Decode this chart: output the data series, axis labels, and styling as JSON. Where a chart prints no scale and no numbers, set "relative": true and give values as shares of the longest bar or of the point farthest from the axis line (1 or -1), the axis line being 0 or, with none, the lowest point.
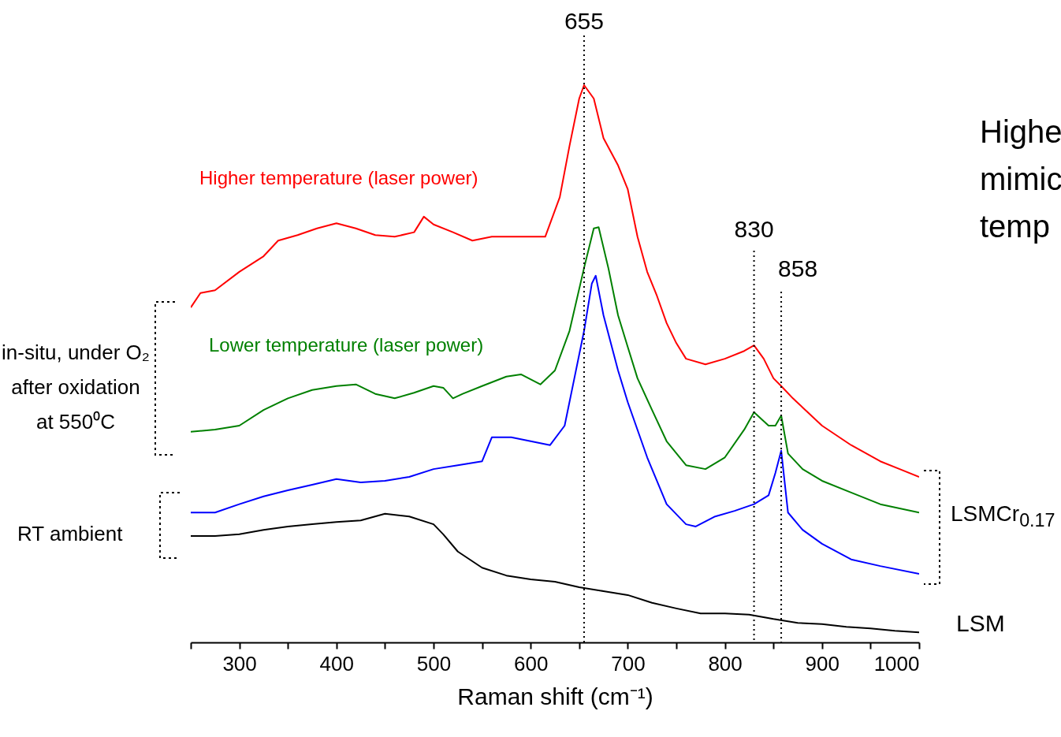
{
  "chart_data": {
    "type": "line",
    "xlabel": "Raman shift (cm⁻¹)",
    "relative": true,
    "xlim": [
      250,
      1000
    ],
    "xticks": [
      {
        "value": 250,
        "label": null
      },
      300,
      {
        "value": 350,
        "label": null
      },
      400,
      {
        "value": 450,
        "label": null
      },
      500,
      {
        "value": 550,
        "label": null
      },
      600,
      {
        "value": 650,
        "label": null
      },
      700,
      {
        "value": 750,
        "label": null
      },
      800,
      {
        "value": 850,
        "label": null
      },
      900,
      {
        "value": 950,
        "label": null
      },
      1000
    ],
    "series": [
      {
        "name": "Higher temperature (laser power)",
        "color": "#ff0000",
        "x": [
          250,
          260,
          275,
          300,
          325,
          340,
          360,
          380,
          400,
          420,
          440,
          460,
          480,
          490,
          500,
          520,
          540,
          560,
          580,
          600,
          615,
          630,
          640,
          650,
          655,
          665,
          675,
          690,
          700,
          710,
          720,
          730,
          740,
          750,
          760,
          780,
          800,
          820,
          830,
          840,
          850,
          858,
          870,
          900,
          930,
          960,
          980,
          1000
        ],
        "values": [
          0.601,
          0.627,
          0.632,
          0.665,
          0.693,
          0.721,
          0.731,
          0.743,
          0.752,
          0.743,
          0.731,
          0.728,
          0.736,
          0.764,
          0.75,
          0.736,
          0.721,
          0.728,
          0.728,
          0.728,
          0.728,
          0.799,
          0.891,
          0.976,
          1.0,
          0.976,
          0.905,
          0.856,
          0.813,
          0.728,
          0.665,
          0.622,
          0.573,
          0.537,
          0.509,
          0.499,
          0.509,
          0.523,
          0.533,
          0.509,
          0.474,
          0.46,
          0.438,
          0.389,
          0.354,
          0.325,
          0.311,
          0.297
        ]
      },
      {
        "name": "Lower temperature (laser power)",
        "color": "#008000",
        "x": [
          250,
          275,
          300,
          325,
          350,
          375,
          400,
          420,
          440,
          460,
          480,
          500,
          510,
          520,
          530,
          550,
          575,
          590,
          610,
          625,
          640,
          655,
          665,
          670,
          680,
          690,
          700,
          710,
          725,
          740,
          760,
          780,
          800,
          820,
          830,
          845,
          852,
          858,
          865,
          880,
          900,
          930,
          960,
          1000
        ],
        "values": [
          0.378,
          0.382,
          0.389,
          0.417,
          0.438,
          0.453,
          0.46,
          0.463,
          0.446,
          0.438,
          0.448,
          0.46,
          0.457,
          0.438,
          0.446,
          0.46,
          0.477,
          0.481,
          0.463,
          0.488,
          0.559,
          0.672,
          0.743,
          0.745,
          0.672,
          0.587,
          0.53,
          0.474,
          0.417,
          0.361,
          0.318,
          0.311,
          0.332,
          0.382,
          0.413,
          0.389,
          0.389,
          0.407,
          0.339,
          0.311,
          0.29,
          0.269,
          0.248,
          0.233
        ]
      },
      {
        "color": "#0000ff",
        "x": [
          250,
          275,
          300,
          325,
          350,
          375,
          400,
          425,
          450,
          475,
          500,
          525,
          550,
          560,
          580,
          600,
          620,
          635,
          645,
          655,
          663,
          667,
          675,
          690,
          700,
          720,
          740,
          760,
          770,
          790,
          810,
          830,
          845,
          852,
          858,
          865,
          880,
          900,
          930,
          960,
          1000
        ],
        "values": [
          0.233,
          0.233,
          0.248,
          0.262,
          0.273,
          0.283,
          0.293,
          0.287,
          0.29,
          0.297,
          0.311,
          0.318,
          0.325,
          0.368,
          0.368,
          0.361,
          0.354,
          0.389,
          0.474,
          0.559,
          0.644,
          0.658,
          0.587,
          0.488,
          0.431,
          0.332,
          0.248,
          0.212,
          0.208,
          0.226,
          0.236,
          0.248,
          0.264,
          0.304,
          0.344,
          0.233,
          0.202,
          0.177,
          0.149,
          0.137,
          0.123
        ]
      },
      {
        "name": "LSM",
        "color": "#000000",
        "x": [
          250,
          275,
          300,
          325,
          350,
          375,
          400,
          425,
          450,
          475,
          500,
          510,
          525,
          550,
          575,
          600,
          625,
          650,
          675,
          700,
          725,
          750,
          775,
          800,
          825,
          850,
          875,
          900,
          925,
          950,
          975,
          1000
        ],
        "values": [
          0.191,
          0.191,
          0.194,
          0.202,
          0.208,
          0.212,
          0.216,
          0.219,
          0.231,
          0.226,
          0.212,
          0.194,
          0.163,
          0.134,
          0.12,
          0.113,
          0.109,
          0.099,
          0.092,
          0.085,
          0.071,
          0.061,
          0.052,
          0.052,
          0.05,
          0.042,
          0.035,
          0.033,
          0.028,
          0.025,
          0.021,
          0.018
        ]
      }
    ],
    "ref_lines": [
      {
        "axis": "x",
        "value": 655,
        "label": "655",
        "line_style": "dotted"
      },
      {
        "axis": "x",
        "value": 830,
        "label": "830",
        "line_style": "dotted"
      },
      {
        "axis": "x",
        "value": 858,
        "label": "858",
        "line_style": "dotted"
      }
    ],
    "annotations": [
      "in-situ, under O₂ after oxidation at 550⁰C",
      "RT ambient",
      "LSMCr$_{0.17}$",
      "Highe",
      "mimic",
      "temp"
    ]
  }
}
